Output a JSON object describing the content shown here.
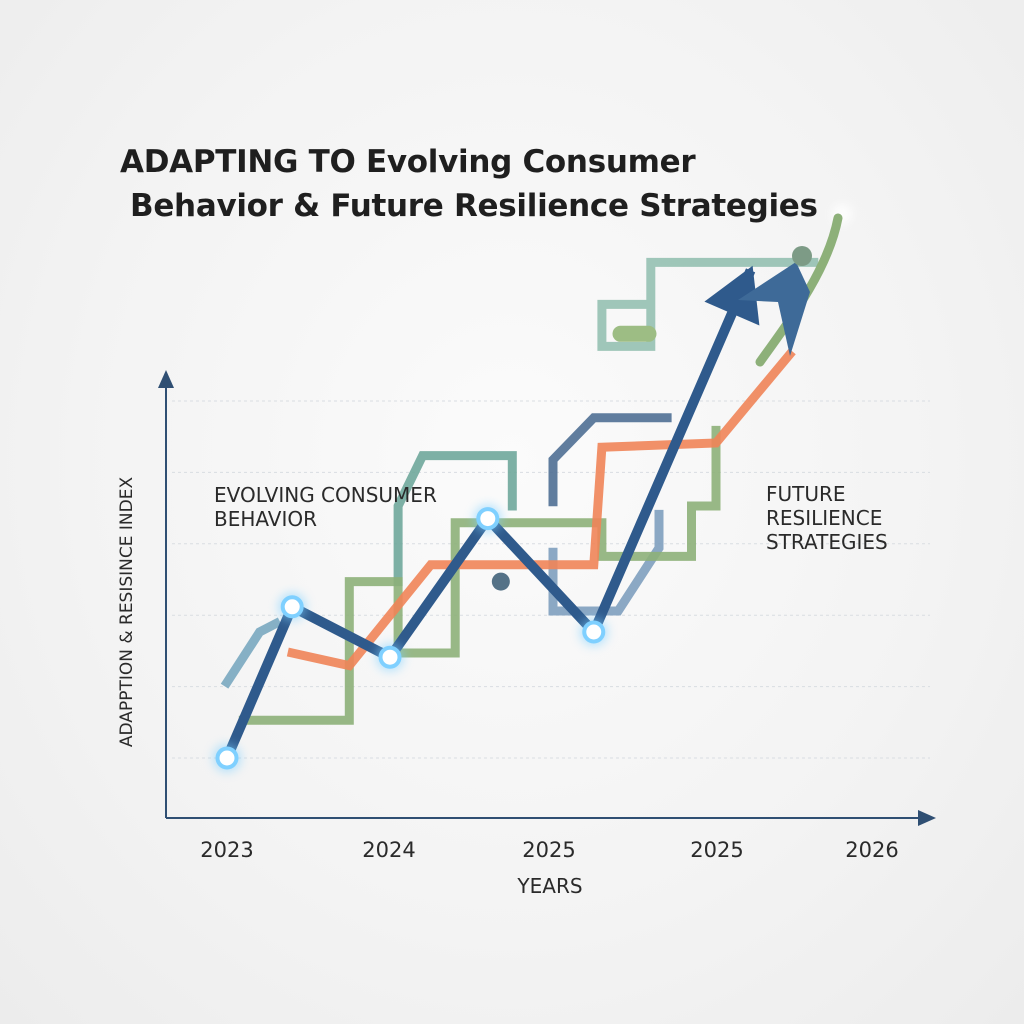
{
  "chart_data": {
    "type": "line",
    "title_lines": [
      "ADAPTING TO Evolving Consumer",
      "Behavior & Future Resilience Strategies"
    ],
    "xlabel": "YEARS",
    "ylabel": "ADAPPTION & RESISINCE INDEX",
    "x_tick_labels": [
      "2023",
      "2024",
      "2025",
      "2025",
      "2026"
    ],
    "annotations": [
      {
        "lines": [
          "EVOLVING CONSUMER",
          "BEHAVIOR"
        ]
      },
      {
        "lines": [
          "FUTURE",
          "RESILIENCE",
          "STRATEGIES"
        ]
      }
    ],
    "grid": true,
    "ylim": [
      0,
      100
    ],
    "series": [
      {
        "color": "#2f5a8c",
        "x": [
          0,
          0.4,
          1.0,
          1.6,
          2.25,
          3.2
        ],
        "values": [
          10,
          46,
          34,
          67,
          40,
          125
        ],
        "markers": [
          0,
          1,
          2,
          3,
          4
        ],
        "arrow": true
      },
      {
        "color": "#ef8458",
        "x": [
          0.4,
          0.75,
          1.25,
          2.25,
          2.3,
          3.0,
          3.45
        ],
        "values": [
          35,
          32,
          56,
          56,
          84,
          85,
          106
        ]
      },
      {
        "color": "#8db079",
        "x": [
          0.1,
          0.75,
          0.75,
          1.05,
          1.05,
          1.4,
          1.4,
          2.3,
          2.3,
          2.85,
          2.85,
          3.0,
          3.0
        ],
        "values": [
          19,
          19,
          52,
          52,
          35,
          35,
          66,
          66,
          58,
          58,
          70,
          70,
          88
        ]
      },
      {
        "color": "#6fa79b",
        "x": [
          1.05,
          1.05,
          1.2,
          1.75,
          1.75
        ],
        "values": [
          52,
          70,
          82,
          82,
          70
        ]
      },
      {
        "color": "#95c0b1",
        "x": [
          2.6,
          2.3,
          2.3,
          2.6,
          2.6,
          3.6
        ],
        "values": [
          118,
          118,
          108,
          108,
          128,
          128
        ]
      },
      {
        "color": "#4f6f93",
        "x": [
          2.0,
          2.0,
          2.25,
          2.7
        ],
        "values": [
          71,
          81,
          91,
          91
        ]
      },
      {
        "color": "#7e9ebe",
        "x": [
          2.0,
          2.0,
          2.4,
          2.65,
          2.65
        ],
        "values": [
          59,
          45,
          45,
          60,
          68
        ]
      },
      {
        "color": "#7aa8c0",
        "x": [
          0.0,
          0.2,
          0.3
        ],
        "values": [
          28,
          40,
          42
        ]
      }
    ],
    "floating_marks": [
      {
        "shape": "dash",
        "color": "#9dbd84",
        "x": 2.5,
        "y": 111
      },
      {
        "shape": "dot",
        "color": "#557287",
        "x": 1.68,
        "y": 52
      }
    ],
    "icon": "person-on-arrow-icon",
    "colors": {
      "title": "#1f1f1f",
      "axis": "#2f4f73",
      "grid": "#d9dde2",
      "marker_glow": "#7fd0ff"
    }
  }
}
